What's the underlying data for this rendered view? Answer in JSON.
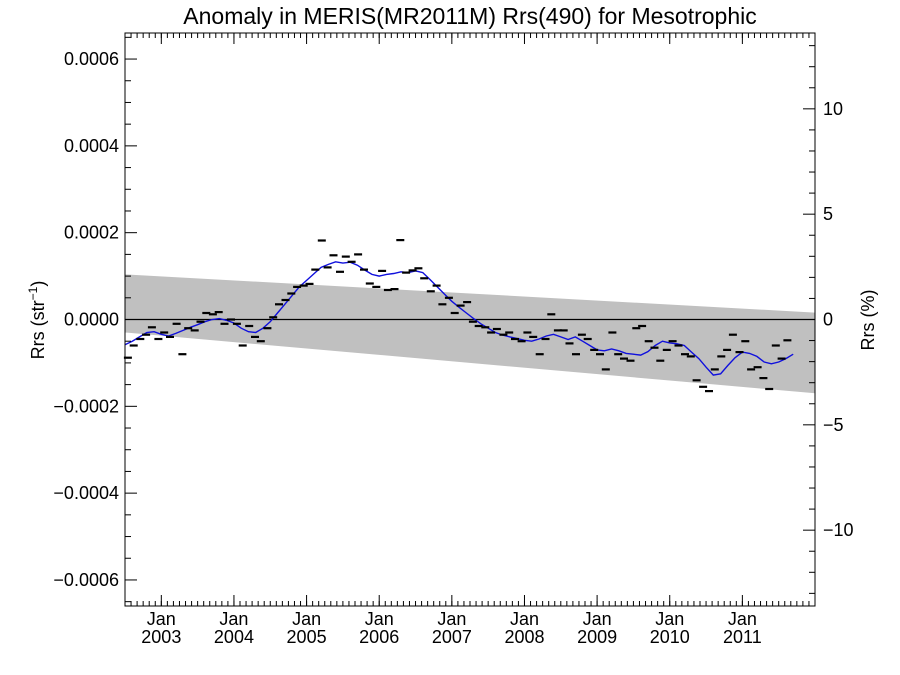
{
  "chart_data": {
    "type": "line",
    "title": "Anomaly in MERIS(MR2011M) Rrs(490) for Mesotrophic",
    "ylabel_left": {
      "base": "Rrs (str",
      "sup": "−1",
      "close": ")"
    },
    "ylabel_right": "Rrs (%)",
    "xlim": [
      2002.5,
      2012.0
    ],
    "ylim_left": [
      -0.00066,
      0.00066
    ],
    "ylim_right": [
      -13.6,
      13.6
    ],
    "y_left_ticks": [
      {
        "value": 0.0006,
        "label": "0.0006"
      },
      {
        "value": 0.0004,
        "label": "0.0004"
      },
      {
        "value": 0.0002,
        "label": "0.0002"
      },
      {
        "value": 0.0,
        "label": "0.0000"
      },
      {
        "value": -0.0002,
        "label": "−0.0002"
      },
      {
        "value": -0.0004,
        "label": "−0.0004"
      },
      {
        "value": -0.0006,
        "label": "−0.0006"
      }
    ],
    "y_right_ticks": [
      {
        "value": 10,
        "label": "10"
      },
      {
        "value": 5,
        "label": "5"
      },
      {
        "value": 0,
        "label": "0"
      },
      {
        "value": -5,
        "label": "−5"
      },
      {
        "value": -10,
        "label": "−10"
      }
    ],
    "x_ticks": [
      {
        "value": 2003.0,
        "month": "Jan",
        "year": "2003"
      },
      {
        "value": 2004.0,
        "month": "Jan",
        "year": "2004"
      },
      {
        "value": 2005.0,
        "month": "Jan",
        "year": "2005"
      },
      {
        "value": 2006.0,
        "month": "Jan",
        "year": "2006"
      },
      {
        "value": 2007.0,
        "month": "Jan",
        "year": "2007"
      },
      {
        "value": 2008.0,
        "month": "Jan",
        "year": "2008"
      },
      {
        "value": 2009.0,
        "month": "Jan",
        "year": "2009"
      },
      {
        "value": 2010.0,
        "month": "Jan",
        "year": "2010"
      },
      {
        "value": 2011.0,
        "month": "Jan",
        "year": "2011"
      }
    ],
    "uncertainty_band": {
      "x": [
        2002.5,
        2012.0
      ],
      "upper": [
        0.000104,
        1.6e-05
      ],
      "lower": [
        -3e-05,
        -0.00017
      ]
    },
    "reference_line": 0.0,
    "series": [
      {
        "mark": "points",
        "color": "#000000",
        "points": [
          [
            2002.54,
            -8.8e-05
          ],
          [
            2002.62,
            -6e-05
          ],
          [
            2002.71,
            -4.5e-05
          ],
          [
            2002.79,
            -3.5e-05
          ],
          [
            2002.87,
            -1.8e-05
          ],
          [
            2002.96,
            -4.5e-05
          ],
          [
            2003.04,
            -3e-05
          ],
          [
            2003.12,
            -4e-05
          ],
          [
            2003.21,
            -1e-05
          ],
          [
            2003.29,
            -8e-05
          ],
          [
            2003.37,
            -2e-05
          ],
          [
            2003.46,
            -2.5e-05
          ],
          [
            2003.54,
            -5e-06
          ],
          [
            2003.62,
            1.5e-05
          ],
          [
            2003.71,
            1.2e-05
          ],
          [
            2003.79,
            1.7e-05
          ],
          [
            2003.87,
            -1e-05
          ],
          [
            2003.96,
            0.0
          ],
          [
            2004.04,
            -1e-05
          ],
          [
            2004.12,
            -6e-05
          ],
          [
            2004.21,
            -1.5e-05
          ],
          [
            2004.29,
            -4e-05
          ],
          [
            2004.37,
            -5e-05
          ],
          [
            2004.46,
            -2e-05
          ],
          [
            2004.54,
            5e-06
          ],
          [
            2004.62,
            3.5e-05
          ],
          [
            2004.71,
            4.5e-05
          ],
          [
            2004.79,
            6e-05
          ],
          [
            2004.87,
            7.5e-05
          ],
          [
            2004.96,
            7.8e-05
          ],
          [
            2005.04,
            8.2e-05
          ],
          [
            2005.12,
            0.000115
          ],
          [
            2005.21,
            0.000182
          ],
          [
            2005.29,
            0.00012
          ],
          [
            2005.37,
            0.000148
          ],
          [
            2005.46,
            0.00011
          ],
          [
            2005.54,
            0.000145
          ],
          [
            2005.62,
            0.000133
          ],
          [
            2005.71,
            0.00015
          ],
          [
            2005.79,
            0.000115
          ],
          [
            2005.87,
            8.3e-05
          ],
          [
            2005.96,
            7.5e-05
          ],
          [
            2006.04,
            0.000112
          ],
          [
            2006.12,
            6.8e-05
          ],
          [
            2006.21,
            7e-05
          ],
          [
            2006.29,
            0.000183
          ],
          [
            2006.37,
            0.000108
          ],
          [
            2006.46,
            0.000113
          ],
          [
            2006.54,
            0.000118
          ],
          [
            2006.62,
            9.5e-05
          ],
          [
            2006.71,
            6.5e-05
          ],
          [
            2006.79,
            7.8e-05
          ],
          [
            2006.87,
            3.5e-05
          ],
          [
            2006.96,
            5e-05
          ],
          [
            2007.04,
            1.5e-05
          ],
          [
            2007.12,
            3.2e-05
          ],
          [
            2007.21,
            4e-05
          ],
          [
            2007.29,
            -5e-06
          ],
          [
            2007.37,
            -1.5e-05
          ],
          [
            2007.46,
            -1.8e-05
          ],
          [
            2007.54,
            -3e-05
          ],
          [
            2007.62,
            -2.2e-05
          ],
          [
            2007.71,
            -3.5e-05
          ],
          [
            2007.79,
            -3e-05
          ],
          [
            2007.87,
            -4.5e-05
          ],
          [
            2007.96,
            -5e-05
          ],
          [
            2008.04,
            -3e-05
          ],
          [
            2008.12,
            -4e-05
          ],
          [
            2008.21,
            -8e-05
          ],
          [
            2008.29,
            -4.5e-05
          ],
          [
            2008.37,
            1.2e-05
          ],
          [
            2008.46,
            -2.5e-05
          ],
          [
            2008.54,
            -2.5e-05
          ],
          [
            2008.62,
            -5.5e-05
          ],
          [
            2008.71,
            -8e-05
          ],
          [
            2008.79,
            -3.5e-05
          ],
          [
            2008.87,
            -4.5e-05
          ],
          [
            2008.96,
            -7e-05
          ],
          [
            2009.04,
            -8e-05
          ],
          [
            2009.12,
            -0.000115
          ],
          [
            2009.21,
            -3e-05
          ],
          [
            2009.29,
            -8e-05
          ],
          [
            2009.37,
            -9e-05
          ],
          [
            2009.46,
            -9.5e-05
          ],
          [
            2009.54,
            -2e-05
          ],
          [
            2009.62,
            -1.5e-05
          ],
          [
            2009.71,
            -5e-05
          ],
          [
            2009.79,
            -6.5e-05
          ],
          [
            2009.87,
            -9.5e-05
          ],
          [
            2009.96,
            -7e-05
          ],
          [
            2010.04,
            -5e-05
          ],
          [
            2010.12,
            -6e-05
          ],
          [
            2010.21,
            -8e-05
          ],
          [
            2010.29,
            -8.5e-05
          ],
          [
            2010.37,
            -0.00014
          ],
          [
            2010.46,
            -0.000155
          ],
          [
            2010.54,
            -0.000165
          ],
          [
            2010.62,
            -0.000115
          ],
          [
            2010.71,
            -8.5e-05
          ],
          [
            2010.79,
            -7e-05
          ],
          [
            2010.87,
            -3.5e-05
          ],
          [
            2010.96,
            -7.5e-05
          ],
          [
            2011.04,
            -5e-05
          ],
          [
            2011.12,
            -0.000115
          ],
          [
            2011.21,
            -0.00011
          ],
          [
            2011.29,
            -0.000135
          ],
          [
            2011.37,
            -0.00016
          ],
          [
            2011.46,
            -6e-05
          ],
          [
            2011.54,
            -9e-05
          ],
          [
            2011.62,
            -4.8e-05
          ]
        ]
      },
      {
        "mark": "line",
        "color": "#1010dd",
        "points": [
          [
            2002.5,
            -5.8e-05
          ],
          [
            2002.6,
            -5e-05
          ],
          [
            2002.7,
            -4e-05
          ],
          [
            2002.8,
            -3e-05
          ],
          [
            2002.9,
            -2.8e-05
          ],
          [
            2003.0,
            -3.4e-05
          ],
          [
            2003.1,
            -3.8e-05
          ],
          [
            2003.2,
            -3.2e-05
          ],
          [
            2003.3,
            -2.5e-05
          ],
          [
            2003.4,
            -1.8e-05
          ],
          [
            2003.5,
            -1.2e-05
          ],
          [
            2003.6,
            -5e-06
          ],
          [
            2003.7,
            0.0
          ],
          [
            2003.8,
            2e-06
          ],
          [
            2003.9,
            -2e-06
          ],
          [
            2004.0,
            -8e-06
          ],
          [
            2004.1,
            -2e-05
          ],
          [
            2004.2,
            -2.8e-05
          ],
          [
            2004.3,
            -3e-05
          ],
          [
            2004.4,
            -2e-05
          ],
          [
            2004.5,
            -5e-06
          ],
          [
            2004.6,
            1.5e-05
          ],
          [
            2004.7,
            3.5e-05
          ],
          [
            2004.8,
            5.5e-05
          ],
          [
            2004.9,
            7.5e-05
          ],
          [
            2005.0,
            9e-05
          ],
          [
            2005.1,
            0.000105
          ],
          [
            2005.2,
            0.00012
          ],
          [
            2005.3,
            0.000127
          ],
          [
            2005.4,
            0.000133
          ],
          [
            2005.5,
            0.00013
          ],
          [
            2005.6,
            0.000132
          ],
          [
            2005.7,
            0.000125
          ],
          [
            2005.8,
            0.000114
          ],
          [
            2005.9,
            0.000104
          ],
          [
            2006.0,
            0.0001
          ],
          [
            2006.1,
            0.000104
          ],
          [
            2006.2,
            0.000106
          ],
          [
            2006.3,
            0.00011
          ],
          [
            2006.4,
            0.000108
          ],
          [
            2006.5,
            0.000112
          ],
          [
            2006.6,
            0.000108
          ],
          [
            2006.7,
            9.2e-05
          ],
          [
            2006.8,
            7.5e-05
          ],
          [
            2006.9,
            5.8e-05
          ],
          [
            2007.0,
            4.2e-05
          ],
          [
            2007.1,
            2.8e-05
          ],
          [
            2007.2,
            1.5e-05
          ],
          [
            2007.3,
            2e-06
          ],
          [
            2007.4,
            -1e-05
          ],
          [
            2007.5,
            -2e-05
          ],
          [
            2007.6,
            -3e-05
          ],
          [
            2007.7,
            -3.6e-05
          ],
          [
            2007.8,
            -4e-05
          ],
          [
            2007.9,
            -4.4e-05
          ],
          [
            2008.0,
            -4.8e-05
          ],
          [
            2008.1,
            -5e-05
          ],
          [
            2008.2,
            -4.5e-05
          ],
          [
            2008.3,
            -3.8e-05
          ],
          [
            2008.4,
            -3.4e-05
          ],
          [
            2008.5,
            -4e-05
          ],
          [
            2008.6,
            -4.6e-05
          ],
          [
            2008.7,
            -4e-05
          ],
          [
            2008.8,
            -5e-05
          ],
          [
            2008.9,
            -6e-05
          ],
          [
            2009.0,
            -7e-05
          ],
          [
            2009.1,
            -7.2e-05
          ],
          [
            2009.2,
            -6.8e-05
          ],
          [
            2009.3,
            -7.2e-05
          ],
          [
            2009.4,
            -7.8e-05
          ],
          [
            2009.5,
            -8e-05
          ],
          [
            2009.6,
            -8.2e-05
          ],
          [
            2009.7,
            -7.4e-05
          ],
          [
            2009.8,
            -6e-05
          ],
          [
            2009.9,
            -5e-05
          ],
          [
            2010.0,
            -5.4e-05
          ],
          [
            2010.1,
            -5.6e-05
          ],
          [
            2010.2,
            -6e-05
          ],
          [
            2010.3,
            -7.5e-05
          ],
          [
            2010.4,
            -9e-05
          ],
          [
            2010.5,
            -0.00011
          ],
          [
            2010.6,
            -0.000128
          ],
          [
            2010.7,
            -0.000125
          ],
          [
            2010.8,
            -0.000106
          ],
          [
            2010.9,
            -8.8e-05
          ],
          [
            2011.0,
            -7.5e-05
          ],
          [
            2011.1,
            -7.8e-05
          ],
          [
            2011.2,
            -8.5e-05
          ],
          [
            2011.3,
            -9.8e-05
          ],
          [
            2011.4,
            -0.000102
          ],
          [
            2011.5,
            -9.8e-05
          ],
          [
            2011.6,
            -9e-05
          ],
          [
            2011.7,
            -8e-05
          ]
        ]
      }
    ]
  }
}
